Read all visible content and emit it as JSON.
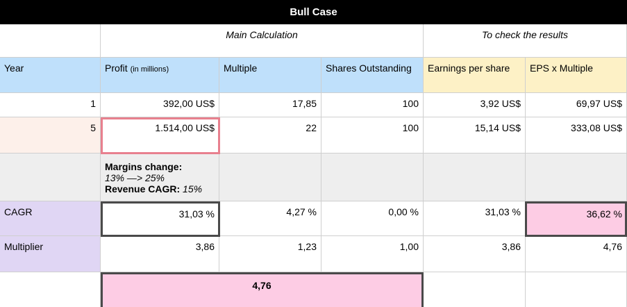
{
  "sheet": {
    "title": "Bull Case",
    "sections": {
      "main": "Main Calculation",
      "check": "To check the results"
    },
    "headers": {
      "year": "Year",
      "profit": "Profit",
      "profit_unit": "(in millions)",
      "multiple": "Multiple",
      "shares": "Shares Outstanding",
      "eps": "Earnings per share",
      "eps_multiple": "EPS x Multiple"
    },
    "row1": {
      "year": "1",
      "profit": "392,00 US$",
      "multiple": "17,85",
      "shares": "100",
      "eps": "3,92 US$",
      "eps_multiple": "69,97 US$"
    },
    "row5": {
      "year": "5",
      "profit": "1.514,00 US$",
      "multiple": "22",
      "shares": "100",
      "eps": "15,14 US$",
      "eps_multiple": "333,08 US$"
    },
    "note": {
      "margins_label": "Margins change:",
      "margins_value": "13% —> 25%",
      "revenue_label": "Revenue CAGR:",
      "revenue_value": "15%"
    },
    "cagr": {
      "label": "CAGR",
      "profit": "31,03 %",
      "multiple": "4,27 %",
      "shares": "0,00 %",
      "eps": "31,03 %",
      "eps_multiple": "36,62 %"
    },
    "multiplier": {
      "label": "Multiplier",
      "profit": "3,86",
      "multiple": "1,23",
      "shares": "1,00",
      "eps": "3,86",
      "eps_multiple": "4,76"
    },
    "total": "4,76"
  },
  "colors": {
    "title_bg": "#000000",
    "header_blue": "#bfe0fb",
    "header_yellow": "#fdf1c6",
    "row5_peach": "#fdf0ea",
    "note_grey": "#eeeeee",
    "label_lavender": "#e0d6f4",
    "highlight_pink": "#fdcce4",
    "selection_red": "#e8808e",
    "selection_dark": "#4a4a4a"
  }
}
